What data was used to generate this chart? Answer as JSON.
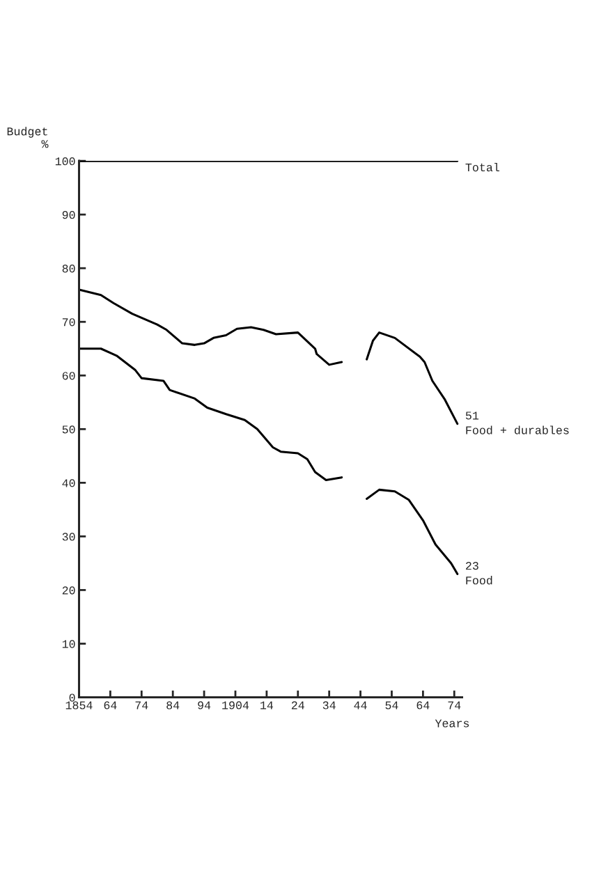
{
  "chart_data": {
    "type": "line",
    "xlabel": "Years",
    "ylabel": "Budget\n%",
    "xlim": [
      1854,
      1976.5
    ],
    "ylim": [
      0,
      100
    ],
    "xticks": [
      1854,
      {
        "value": 1864,
        "label": "64"
      },
      {
        "value": 1874,
        "label": "74"
      },
      {
        "value": 1884,
        "label": "84"
      },
      {
        "value": 1894,
        "label": "94"
      },
      1904,
      {
        "value": 1914,
        "label": "14"
      },
      {
        "value": 1924,
        "label": "24"
      },
      {
        "value": 1934,
        "label": "34"
      },
      {
        "value": 1944,
        "label": "44"
      },
      {
        "value": 1954,
        "label": "54"
      },
      {
        "value": 1964,
        "label": "64"
      },
      {
        "value": 1974,
        "label": "74"
      }
    ],
    "yticks": [
      0,
      10,
      20,
      30,
      40,
      50,
      60,
      70,
      80,
      90,
      100
    ],
    "series": [
      {
        "name": "Total",
        "color": "#000000",
        "x": [
          1854,
          1975
        ],
        "values": [
          100,
          100
        ]
      },
      {
        "name": "Food + durables",
        "color": "#000000",
        "x": [
          1854,
          1861,
          1865,
          1871,
          1879,
          1882,
          1887,
          1891,
          1894,
          1897,
          1901,
          1904.5,
          1909,
          1913,
          1917,
          1924,
          1929.5,
          1930,
          1934,
          1938,
          1942,
          1946,
          1948,
          1950,
          1955,
          1963,
          1964.5,
          1967,
          1971,
          1975
        ],
        "values": [
          76,
          75,
          73.5,
          71.5,
          69.5,
          68.5,
          66,
          65.7,
          66,
          67,
          67.5,
          68.7,
          69,
          68.5,
          67.7,
          68,
          65,
          64,
          62,
          62.5,
          null,
          63,
          66.5,
          68,
          67,
          63.5,
          62.5,
          59,
          55.5,
          51
        ]
      },
      {
        "name": "Food",
        "color": "#000000",
        "x": [
          1854,
          1861,
          1866,
          1872,
          1874,
          1881,
          1883,
          1891,
          1895,
          1901,
          1907,
          1911,
          1916,
          1918.5,
          1924,
          1927,
          1929.5,
          1933,
          1938,
          1942,
          1946,
          1950,
          1955,
          1959.5,
          1964,
          1968,
          1973,
          1975
        ],
        "values": [
          65,
          65,
          63.7,
          61,
          59.5,
          59,
          57.3,
          55.7,
          54,
          52.8,
          51.7,
          50,
          46.6,
          45.8,
          45.5,
          44.4,
          42,
          40.5,
          41,
          null,
          37,
          38.7,
          38.4,
          36.8,
          33,
          28.5,
          25,
          23
        ]
      }
    ],
    "annotations": [
      {
        "text": "51",
        "x": 1975,
        "y": 51
      },
      {
        "text": "23",
        "x": 1975,
        "y": 23
      }
    ]
  }
}
